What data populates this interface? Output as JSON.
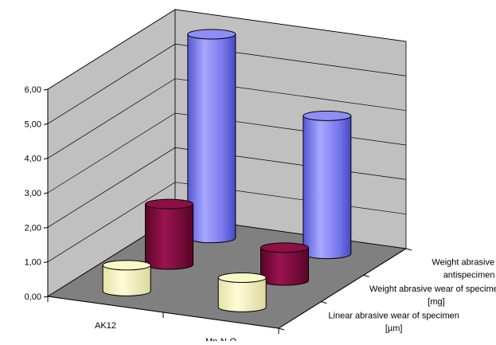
{
  "chart_data": {
    "type": "bar",
    "subtype": "3d-cylinder",
    "title": "",
    "xlabel": "",
    "ylabel": "",
    "categories": [
      "AK12",
      "Mn-N-O"
    ],
    "depth_labels": [
      [
        "Weight abrasive wear of",
        "antispecimen [mg]"
      ],
      [
        "Weight abrasive wear of specimen",
        "[mg]"
      ],
      [
        "Linear abrasive wear of specimen",
        "[µm]"
      ]
    ],
    "series": [
      {
        "values": [
          5.9,
          4.0
        ],
        "color": "#8e8ef6"
      },
      {
        "values": [
          1.75,
          0.95
        ],
        "color": "#8d0f45"
      },
      {
        "values": [
          0.75,
          0.85
        ],
        "color": "#fbf8c8"
      }
    ],
    "ylim": [
      0,
      6
    ],
    "y_ticks": [
      "0,00",
      "1,00",
      "2,00",
      "3,00",
      "4,00",
      "5,00",
      "6,00"
    ],
    "grid": true,
    "wall_color": "#c0c0c0",
    "floor_color": "#808080",
    "legend": "none"
  }
}
